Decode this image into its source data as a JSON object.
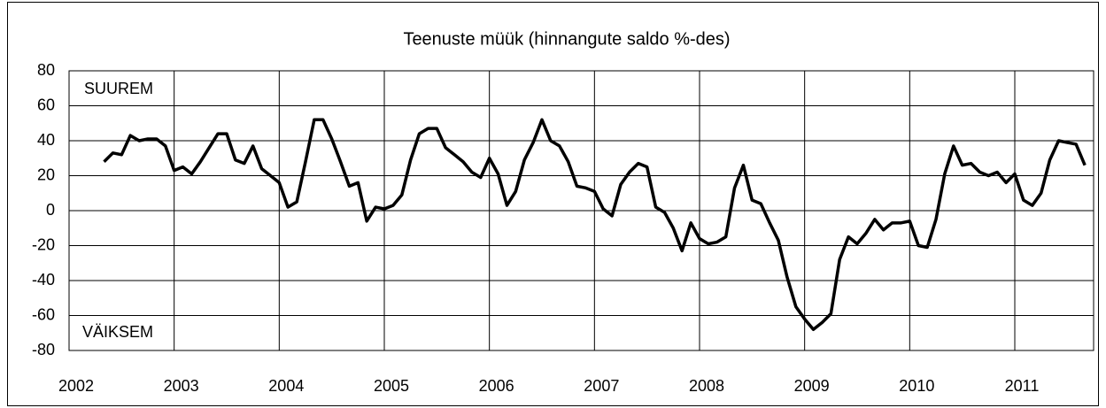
{
  "chart_data": {
    "type": "line",
    "title": "Teenuste müük (hinnangute saldo %-des)",
    "annotations": [
      "SUUREM",
      "VÄIKSEM"
    ],
    "x": [
      2002.333,
      2002.417,
      2002.5,
      2002.583,
      2002.667,
      2002.75,
      2002.833,
      2002.917,
      2003,
      2003.083,
      2003.167,
      2003.25,
      2003.333,
      2003.417,
      2003.5,
      2003.583,
      2003.667,
      2003.75,
      2003.833,
      2003.917,
      2004,
      2004.083,
      2004.167,
      2004.25,
      2004.333,
      2004.417,
      2004.5,
      2004.583,
      2004.667,
      2004.75,
      2004.833,
      2004.917,
      2005,
      2005.083,
      2005.167,
      2005.25,
      2005.333,
      2005.417,
      2005.5,
      2005.583,
      2005.667,
      2005.75,
      2005.833,
      2005.917,
      2006,
      2006.083,
      2006.167,
      2006.25,
      2006.333,
      2006.417,
      2006.5,
      2006.583,
      2006.667,
      2006.75,
      2006.833,
      2006.917,
      2007,
      2007.083,
      2007.167,
      2007.25,
      2007.333,
      2007.417,
      2007.5,
      2007.583,
      2007.667,
      2007.75,
      2007.833,
      2007.917,
      2008,
      2008.083,
      2008.167,
      2008.25,
      2008.333,
      2008.417,
      2008.5,
      2008.583,
      2008.667,
      2008.75,
      2008.833,
      2008.917,
      2009,
      2009.083,
      2009.167,
      2009.25,
      2009.333,
      2009.417,
      2009.5,
      2009.583,
      2009.667,
      2009.75,
      2009.833,
      2009.917,
      2010,
      2010.083,
      2010.167,
      2010.25,
      2010.333,
      2010.417,
      2010.5,
      2010.583,
      2010.667,
      2010.75,
      2010.833,
      2010.917,
      2011,
      2011.083,
      2011.167,
      2011.25,
      2011.333,
      2011.417,
      2011.5,
      2011.583,
      2011.667
    ],
    "series": [
      {
        "name": "Teenuste müük",
        "color": "#000000",
        "values": [
          28,
          33,
          32,
          43,
          40,
          41,
          41,
          37,
          23,
          25,
          21,
          28,
          36,
          44,
          44,
          29,
          27,
          37,
          24,
          20,
          16,
          2,
          5,
          28,
          52,
          52,
          41,
          28,
          14,
          16,
          -6,
          2,
          1,
          3,
          9,
          29,
          44,
          47,
          47,
          36,
          32,
          28,
          22,
          19,
          30,
          21,
          3,
          11,
          29,
          39,
          52,
          40,
          37,
          28,
          14,
          13,
          11,
          1,
          -3,
          15,
          22,
          27,
          25,
          2,
          -1,
          -10,
          -23,
          -7,
          -16,
          -19,
          -18,
          -15,
          13,
          26,
          6,
          4,
          -7,
          -17,
          -38,
          -55,
          -62,
          -68,
          -64,
          -59,
          -28,
          -15,
          -19,
          -13,
          -5,
          -11,
          -7,
          -7,
          -6,
          -20,
          -21,
          -5,
          21,
          37,
          26,
          27,
          22,
          20,
          22,
          16,
          21,
          6,
          3,
          10,
          29,
          40,
          39,
          38,
          26
        ]
      }
    ],
    "xlim": [
      2002,
      2011.75
    ],
    "xticks": [
      2002,
      2003,
      2004,
      2005,
      2006,
      2007,
      2008,
      2009,
      2010,
      2011
    ],
    "ylim": [
      -80,
      80
    ],
    "yticks": [
      -80,
      -60,
      -40,
      -20,
      0,
      20,
      40,
      60,
      80
    ],
    "grid": true
  }
}
